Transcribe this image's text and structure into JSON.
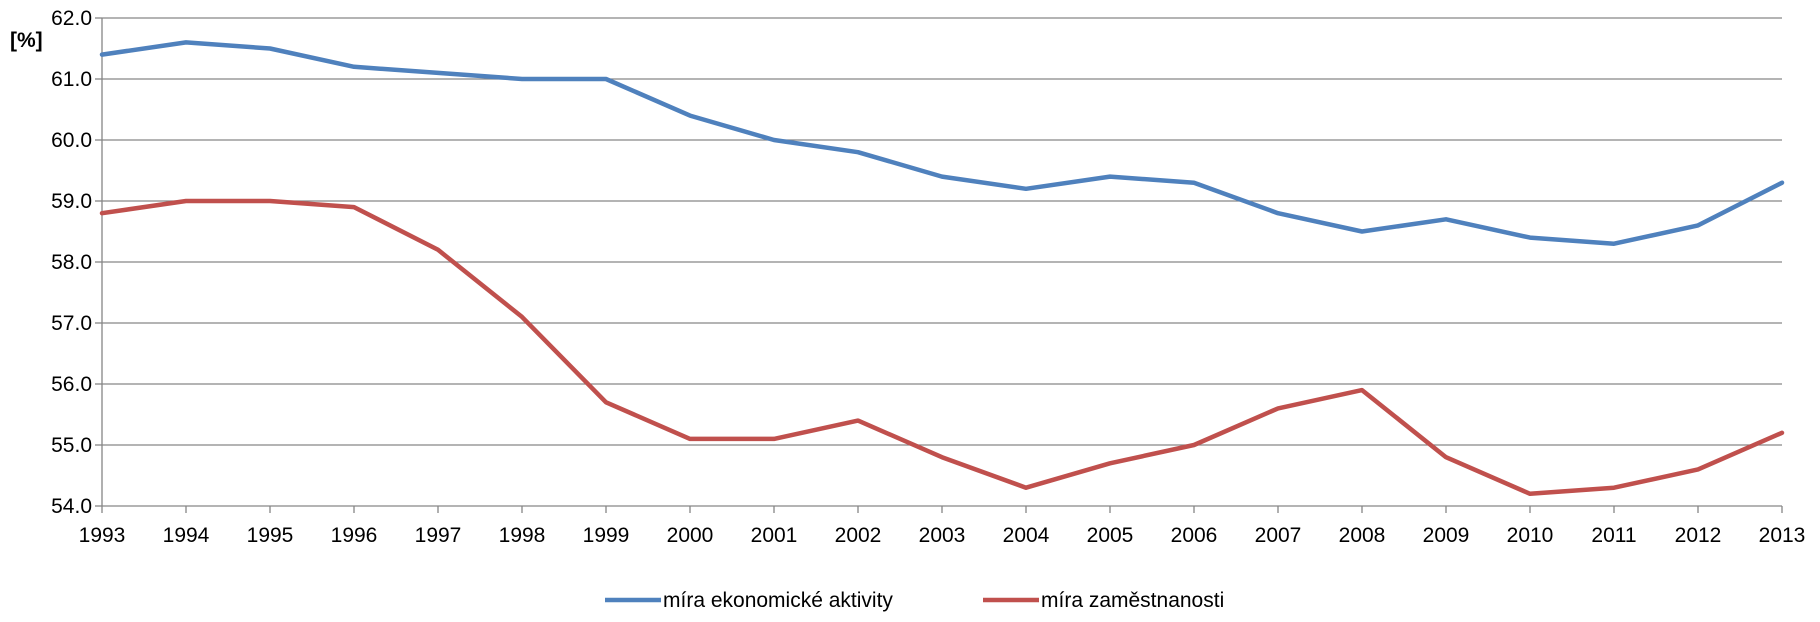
{
  "chart_data": {
    "type": "line",
    "ylabel": "[%]",
    "xlabel": "",
    "title": "",
    "ylim": [
      54.0,
      62.0
    ],
    "yticks": [
      "54.0",
      "55.0",
      "56.0",
      "57.0",
      "58.0",
      "59.0",
      "60.0",
      "61.0",
      "62.0"
    ],
    "categories": [
      "1993",
      "1994",
      "1995",
      "1996",
      "1997",
      "1998",
      "1999",
      "2000",
      "2001",
      "2002",
      "2003",
      "2004",
      "2005",
      "2006",
      "2007",
      "2008",
      "2009",
      "2010",
      "2011",
      "2012",
      "2013"
    ],
    "grid": true,
    "legend_position": "bottom",
    "series": [
      {
        "name": "míra ekonomické aktivity",
        "color": "#4F81BD",
        "values": [
          61.4,
          61.6,
          61.5,
          61.2,
          61.1,
          61.0,
          61.0,
          60.4,
          60.0,
          59.8,
          59.4,
          59.2,
          59.4,
          59.3,
          58.8,
          58.5,
          58.7,
          58.4,
          58.3,
          58.6,
          59.3
        ]
      },
      {
        "name": "míra zaměstnanosti",
        "color": "#C0504D",
        "values": [
          58.8,
          59.0,
          59.0,
          58.9,
          58.2,
          57.1,
          55.7,
          55.1,
          55.1,
          55.4,
          54.8,
          54.3,
          54.7,
          55.0,
          55.6,
          55.9,
          54.8,
          54.2,
          54.3,
          54.6,
          55.2
        ]
      }
    ]
  }
}
